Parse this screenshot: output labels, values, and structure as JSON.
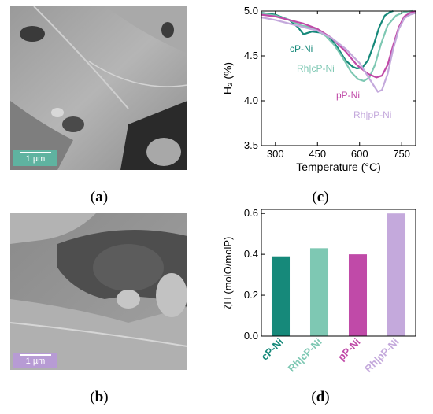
{
  "panels": {
    "a": {
      "letter": "a",
      "scale_label": "1 µm",
      "scale_color": "#5fb3a0"
    },
    "b": {
      "letter": "b",
      "scale_label": "1 µm",
      "scale_color": "#b79bd4"
    },
    "c": {
      "letter": "c"
    },
    "d": {
      "letter": "d"
    }
  },
  "chart_data": [
    {
      "type": "line",
      "xlabel": "Temperature (°C)",
      "ylabel": "H₂ (%)",
      "xlim": [
        250,
        800
      ],
      "ylim": [
        3.5,
        5.0
      ],
      "xticks": [
        300,
        450,
        600,
        750
      ],
      "yticks": [
        3.5,
        4.0,
        4.5,
        5.0
      ],
      "series": [
        {
          "name": "cP-Ni",
          "color": "#16897a",
          "x": [
            250,
            300,
            350,
            380,
            400,
            430,
            460,
            490,
            520,
            550,
            575,
            590,
            610,
            630,
            650,
            670,
            690,
            710,
            720
          ],
          "y": [
            4.98,
            4.96,
            4.9,
            4.82,
            4.74,
            4.77,
            4.76,
            4.72,
            4.6,
            4.45,
            4.38,
            4.36,
            4.37,
            4.45,
            4.62,
            4.82,
            4.95,
            4.99,
            5.0
          ]
        },
        {
          "name": "Rh|cP-Ni",
          "color": "#7ec8b3",
          "x": [
            250,
            300,
            350,
            390,
            420,
            450,
            480,
            510,
            540,
            570,
            595,
            615,
            635,
            655,
            675,
            700,
            730,
            760,
            790
          ],
          "y": [
            4.97,
            4.95,
            4.9,
            4.84,
            4.82,
            4.78,
            4.72,
            4.62,
            4.48,
            4.32,
            4.24,
            4.22,
            4.26,
            4.4,
            4.62,
            4.84,
            4.95,
            4.99,
            5.0
          ]
        },
        {
          "name": "pP-Ni",
          "color": "#c04aa8",
          "x": [
            250,
            300,
            350,
            400,
            450,
            500,
            550,
            590,
            630,
            660,
            680,
            700,
            720,
            740,
            760,
            780,
            800
          ],
          "y": [
            4.96,
            4.94,
            4.9,
            4.86,
            4.8,
            4.7,
            4.55,
            4.4,
            4.3,
            4.26,
            4.28,
            4.4,
            4.62,
            4.82,
            4.94,
            4.98,
            5.0
          ]
        },
        {
          "name": "Rh|pP-Ni",
          "color": "#c4a9dc",
          "x": [
            250,
            300,
            350,
            400,
            450,
            500,
            550,
            600,
            640,
            665,
            680,
            700,
            720,
            740,
            760,
            780,
            800
          ],
          "y": [
            4.93,
            4.9,
            4.86,
            4.82,
            4.78,
            4.7,
            4.58,
            4.42,
            4.22,
            4.1,
            4.12,
            4.3,
            4.58,
            4.8,
            4.92,
            4.96,
            4.98
          ]
        }
      ]
    },
    {
      "type": "bar",
      "ylabel": "ζH (molO/molP)",
      "ylim": [
        0.0,
        0.62
      ],
      "yticks": [
        0.0,
        0.2,
        0.4,
        0.6
      ],
      "categories": [
        "cP-Ni",
        "Rh|cP-Ni",
        "pP-Ni",
        "Rh|pP-Ni"
      ],
      "values": [
        0.39,
        0.43,
        0.4,
        0.6
      ],
      "colors": [
        "#16897a",
        "#7ec8b3",
        "#c04aa8",
        "#c4a9dc"
      ]
    }
  ]
}
